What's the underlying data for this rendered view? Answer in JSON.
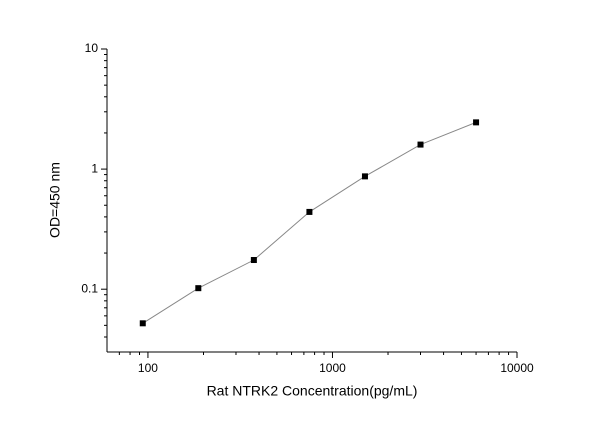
{
  "chart_data": {
    "type": "line",
    "x_label": "Rat NTRK2 Concentration(pg/mL)",
    "y_label": "OD=450 nm",
    "x": [
      93.75,
      187.5,
      375,
      750,
      1500,
      3000,
      6000
    ],
    "series": [
      {
        "values": [
          0.052,
          0.102,
          0.175,
          0.44,
          0.87,
          1.6,
          2.45
        ],
        "color": "#000000",
        "line_color": "#888888"
      }
    ],
    "xlim": [
      60,
      10000
    ],
    "ylim": [
      0.03,
      10
    ],
    "xticks": [
      100,
      1000,
      10000
    ],
    "yticks": [
      0.1,
      1,
      10
    ],
    "xscale": "log",
    "yscale": "log",
    "grid": false
  }
}
